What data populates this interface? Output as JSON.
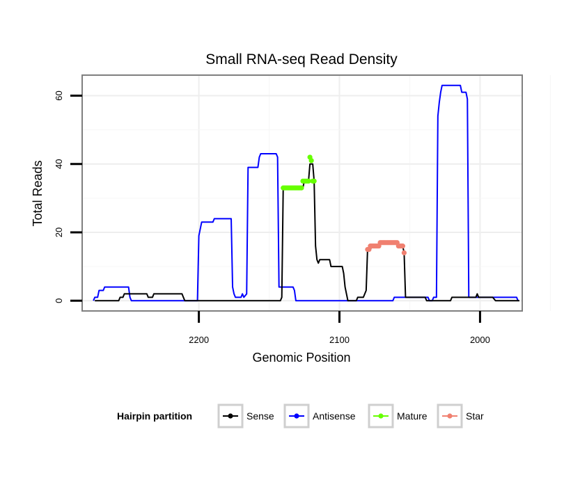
{
  "chart_data": {
    "type": "line",
    "title": "Small RNA-seq Read Density",
    "xlabel": "Genomic Position",
    "ylabel": "Total Reads",
    "x_reversed": true,
    "xlim": [
      2283,
      1970
    ],
    "ylim": [
      -3,
      66
    ],
    "xticks": [
      2200,
      2100,
      2000
    ],
    "xtick_labels": [
      "2200",
      "2100",
      "2000"
    ],
    "yticks": [
      0,
      20,
      40,
      60
    ],
    "ytick_labels": [
      "0",
      "20",
      "40",
      "60"
    ],
    "grid": true,
    "legend": {
      "title": "Hairpin partition",
      "position": "bottom",
      "entries": [
        {
          "label": "Sense",
          "color": "#000000"
        },
        {
          "label": "Antisense",
          "color": "#0000ff"
        },
        {
          "label": "Mature",
          "color": "#66ff00"
        },
        {
          "label": "Star",
          "color": "#f08070"
        }
      ]
    },
    "series": [
      {
        "name": "Sense",
        "color": "#000000",
        "kind": "line",
        "points": [
          [
            2274,
            0
          ],
          [
            2257,
            0
          ],
          [
            2256,
            1
          ],
          [
            2254,
            1
          ],
          [
            2253,
            2
          ],
          [
            2237,
            2
          ],
          [
            2236,
            1
          ],
          [
            2233,
            1
          ],
          [
            2232,
            2
          ],
          [
            2212,
            2
          ],
          [
            2211,
            1
          ],
          [
            2210,
            0
          ],
          [
            2142,
            0
          ],
          [
            2141,
            1
          ],
          [
            2140,
            33
          ],
          [
            2138,
            33
          ],
          [
            2137,
            33
          ],
          [
            2126,
            33
          ],
          [
            2125,
            35
          ],
          [
            2122,
            35
          ],
          [
            2121,
            40
          ],
          [
            2119,
            40
          ],
          [
            2118,
            35
          ],
          [
            2117,
            16
          ],
          [
            2116,
            12
          ],
          [
            2115,
            11
          ],
          [
            2114,
            12
          ],
          [
            2107,
            12
          ],
          [
            2106,
            10
          ],
          [
            2098,
            10
          ],
          [
            2097,
            8
          ],
          [
            2096,
            4
          ],
          [
            2095,
            2
          ],
          [
            2094,
            0
          ],
          [
            2088,
            0
          ],
          [
            2087,
            1
          ],
          [
            2083,
            1
          ],
          [
            2081,
            3
          ],
          [
            2080,
            15
          ],
          [
            2078,
            15
          ],
          [
            2077,
            16
          ],
          [
            2072,
            16
          ],
          [
            2071,
            17
          ],
          [
            2059,
            17
          ],
          [
            2058,
            16
          ],
          [
            2055,
            16
          ],
          [
            2054,
            14
          ],
          [
            2053,
            1
          ],
          [
            2046,
            1
          ],
          [
            2039,
            1
          ],
          [
            2038,
            0
          ],
          [
            2021,
            0
          ],
          [
            2020,
            1
          ],
          [
            2003,
            1
          ],
          [
            2002,
            2
          ],
          [
            2001,
            1
          ],
          [
            1992,
            1
          ],
          [
            1991,
            1
          ],
          [
            1989,
            0
          ],
          [
            1972,
            0
          ]
        ]
      },
      {
        "name": "Antisense",
        "color": "#0000ff",
        "kind": "line",
        "points": [
          [
            2275,
            0
          ],
          [
            2274,
            1
          ],
          [
            2272,
            1
          ],
          [
            2271,
            3
          ],
          [
            2268,
            3
          ],
          [
            2267,
            4
          ],
          [
            2250,
            4
          ],
          [
            2249,
            1
          ],
          [
            2248,
            0
          ],
          [
            2201,
            0
          ],
          [
            2200,
            19
          ],
          [
            2199,
            21
          ],
          [
            2198,
            23
          ],
          [
            2190,
            23
          ],
          [
            2189,
            24
          ],
          [
            2177,
            24
          ],
          [
            2176,
            4
          ],
          [
            2175,
            2
          ],
          [
            2174,
            1
          ],
          [
            2170,
            1
          ],
          [
            2169,
            2
          ],
          [
            2168,
            1
          ],
          [
            2166,
            2
          ],
          [
            2165,
            39
          ],
          [
            2158,
            39
          ],
          [
            2157,
            42
          ],
          [
            2156,
            43
          ],
          [
            2145,
            43
          ],
          [
            2144,
            42
          ],
          [
            2143,
            4
          ],
          [
            2133,
            4
          ],
          [
            2132,
            3
          ],
          [
            2131,
            0
          ],
          [
            2062,
            0
          ],
          [
            2061,
            1
          ],
          [
            2037,
            1
          ],
          [
            2036,
            0
          ],
          [
            2034,
            0
          ],
          [
            2033,
            1
          ],
          [
            2031,
            1
          ],
          [
            2030,
            54
          ],
          [
            2029,
            58
          ],
          [
            2028,
            61
          ],
          [
            2027,
            63
          ],
          [
            2014,
            63
          ],
          [
            2013,
            61
          ],
          [
            2010,
            61
          ],
          [
            2009,
            59
          ],
          [
            2008,
            1
          ],
          [
            1995,
            1
          ],
          [
            1991,
            1
          ],
          [
            1989,
            1
          ],
          [
            1982,
            1
          ],
          [
            1981,
            1
          ],
          [
            1974,
            1
          ],
          [
            1973,
            0
          ]
        ]
      },
      {
        "name": "Mature",
        "color": "#66ff00",
        "kind": "points",
        "points": [
          [
            2140,
            33
          ],
          [
            2139,
            33
          ],
          [
            2138,
            33
          ],
          [
            2137,
            33
          ],
          [
            2136,
            33
          ],
          [
            2135,
            33
          ],
          [
            2134,
            33
          ],
          [
            2133,
            33
          ],
          [
            2132,
            33
          ],
          [
            2131,
            33
          ],
          [
            2130,
            33
          ],
          [
            2129,
            33
          ],
          [
            2128,
            33
          ],
          [
            2127,
            33
          ],
          [
            2126,
            35
          ],
          [
            2125,
            35
          ],
          [
            2124,
            35
          ],
          [
            2123,
            35
          ],
          [
            2122,
            35
          ],
          [
            2121,
            42
          ],
          [
            2120,
            41
          ],
          [
            2119,
            35
          ],
          [
            2118,
            35
          ]
        ]
      },
      {
        "name": "Star",
        "color": "#f08070",
        "kind": "points",
        "points": [
          [
            2080,
            15
          ],
          [
            2079,
            15
          ],
          [
            2078,
            16
          ],
          [
            2077,
            16
          ],
          [
            2076,
            16
          ],
          [
            2075,
            16
          ],
          [
            2074,
            16
          ],
          [
            2073,
            16
          ],
          [
            2072,
            16
          ],
          [
            2071,
            17
          ],
          [
            2070,
            17
          ],
          [
            2069,
            17
          ],
          [
            2068,
            17
          ],
          [
            2067,
            17
          ],
          [
            2066,
            17
          ],
          [
            2065,
            17
          ],
          [
            2064,
            17
          ],
          [
            2063,
            17
          ],
          [
            2062,
            17
          ],
          [
            2061,
            17
          ],
          [
            2060,
            17
          ],
          [
            2059,
            17
          ],
          [
            2058,
            16
          ],
          [
            2057,
            16
          ],
          [
            2056,
            16
          ],
          [
            2055,
            16
          ],
          [
            2054,
            14
          ]
        ]
      }
    ]
  }
}
